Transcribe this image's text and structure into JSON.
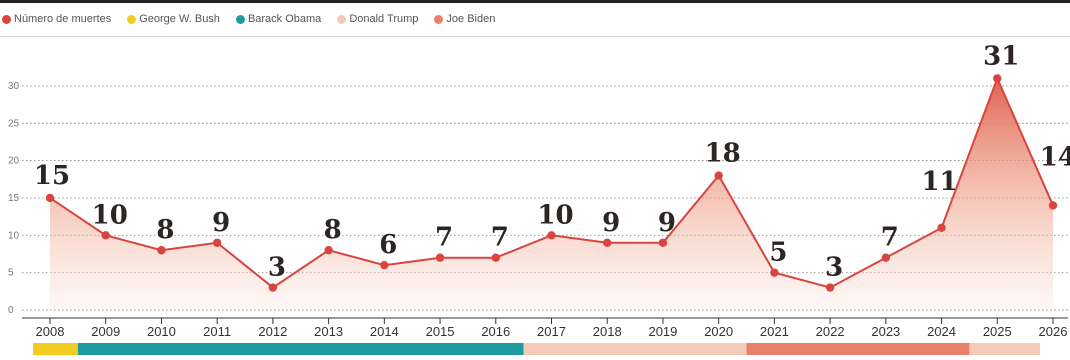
{
  "legend": [
    {
      "label": "Número de muertes",
      "color": "#d9443f"
    },
    {
      "label": "George W. Bush",
      "color": "#f2cc1f"
    },
    {
      "label": "Barack Obama",
      "color": "#1e9aa0"
    },
    {
      "label": "Donald Trump",
      "color": "#f3cbb6"
    },
    {
      "label": "Joe Biden",
      "color": "#e8806a"
    }
  ],
  "chart_data": {
    "type": "area",
    "categories": [
      "2008",
      "2009",
      "2010",
      "2011",
      "2012",
      "2013",
      "2014",
      "2015",
      "2016",
      "2017",
      "2018",
      "2019",
      "2020",
      "2021",
      "2022",
      "2023",
      "2024",
      "2025",
      "2026"
    ],
    "series": [
      {
        "name": "Número de muertes",
        "values": [
          15,
          10,
          8,
          9,
          3,
          8,
          6,
          7,
          7,
          10,
          9,
          9,
          18,
          5,
          3,
          7,
          11,
          31,
          14
        ]
      }
    ],
    "yticks": [
      0,
      5,
      10,
      15,
      20,
      25,
      30
    ],
    "ylim": [
      0,
      32
    ],
    "grid": true,
    "line_color": "#d9443f",
    "presidency_bar": [
      {
        "president": "George W. Bush",
        "from": "2008",
        "to": "2008",
        "color": "#f2cc1f"
      },
      {
        "president": "Barack Obama",
        "from": "2009",
        "to": "2016",
        "color": "#1e9aa0"
      },
      {
        "president": "Donald Trump",
        "from": "2017",
        "to": "2020",
        "color": "#f3cbb6"
      },
      {
        "president": "Joe Biden",
        "from": "2021",
        "to": "2024",
        "color": "#e8806a"
      },
      {
        "president": "Donald Trump",
        "from": "2025",
        "to": "2026",
        "color": "#f3cbb6"
      }
    ]
  }
}
